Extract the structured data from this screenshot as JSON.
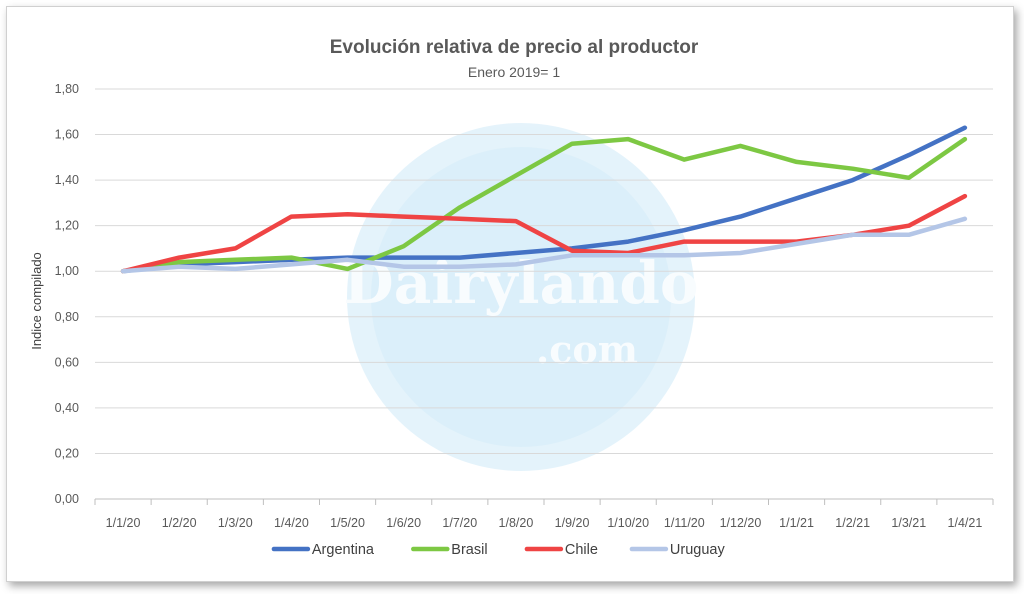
{
  "chart_data": {
    "type": "line",
    "title": "Evolución relativa de precio al productor",
    "subtitle": "Enero 2019= 1",
    "xlabel": "",
    "ylabel": "Indice compilado",
    "ylim": [
      0,
      1.8
    ],
    "y_ticks": [
      "0,00",
      "0,20",
      "0,40",
      "0,60",
      "0,80",
      "1,00",
      "1,20",
      "1,40",
      "1,60",
      "1,80"
    ],
    "categories": [
      "1/1/20",
      "1/2/20",
      "1/3/20",
      "1/4/20",
      "1/5/20",
      "1/6/20",
      "1/7/20",
      "1/8/20",
      "1/9/20",
      "1/10/20",
      "1/11/20",
      "1/12/20",
      "1/1/21",
      "1/2/21",
      "1/3/21",
      "1/4/21"
    ],
    "grid": true,
    "legend_position": "bottom",
    "series": [
      {
        "name": "Argentina",
        "color": "#4472C4",
        "values": [
          1.0,
          1.03,
          1.04,
          1.05,
          1.06,
          1.06,
          1.06,
          1.08,
          1.1,
          1.13,
          1.18,
          1.24,
          1.32,
          1.4,
          1.51,
          1.63
        ]
      },
      {
        "name": "Brasil",
        "color": "#7DC843",
        "values": [
          1.0,
          1.04,
          1.05,
          1.06,
          1.01,
          1.11,
          1.28,
          1.42,
          1.56,
          1.58,
          1.49,
          1.55,
          1.48,
          1.45,
          1.41,
          1.58
        ]
      },
      {
        "name": "Chile",
        "color": "#EF4444",
        "values": [
          1.0,
          1.06,
          1.1,
          1.24,
          1.25,
          1.24,
          1.23,
          1.22,
          1.09,
          1.08,
          1.13,
          1.13,
          1.13,
          1.16,
          1.2,
          1.33
        ]
      },
      {
        "name": "Uruguay",
        "color": "#B4C6E7",
        "values": [
          1.0,
          1.02,
          1.01,
          1.03,
          1.05,
          1.02,
          1.02,
          1.03,
          1.07,
          1.07,
          1.07,
          1.08,
          1.12,
          1.16,
          1.16,
          1.23
        ]
      }
    ],
    "watermark": {
      "text": "Dairylando",
      "subtext": ".com",
      "color": "#9FD6F2"
    }
  }
}
